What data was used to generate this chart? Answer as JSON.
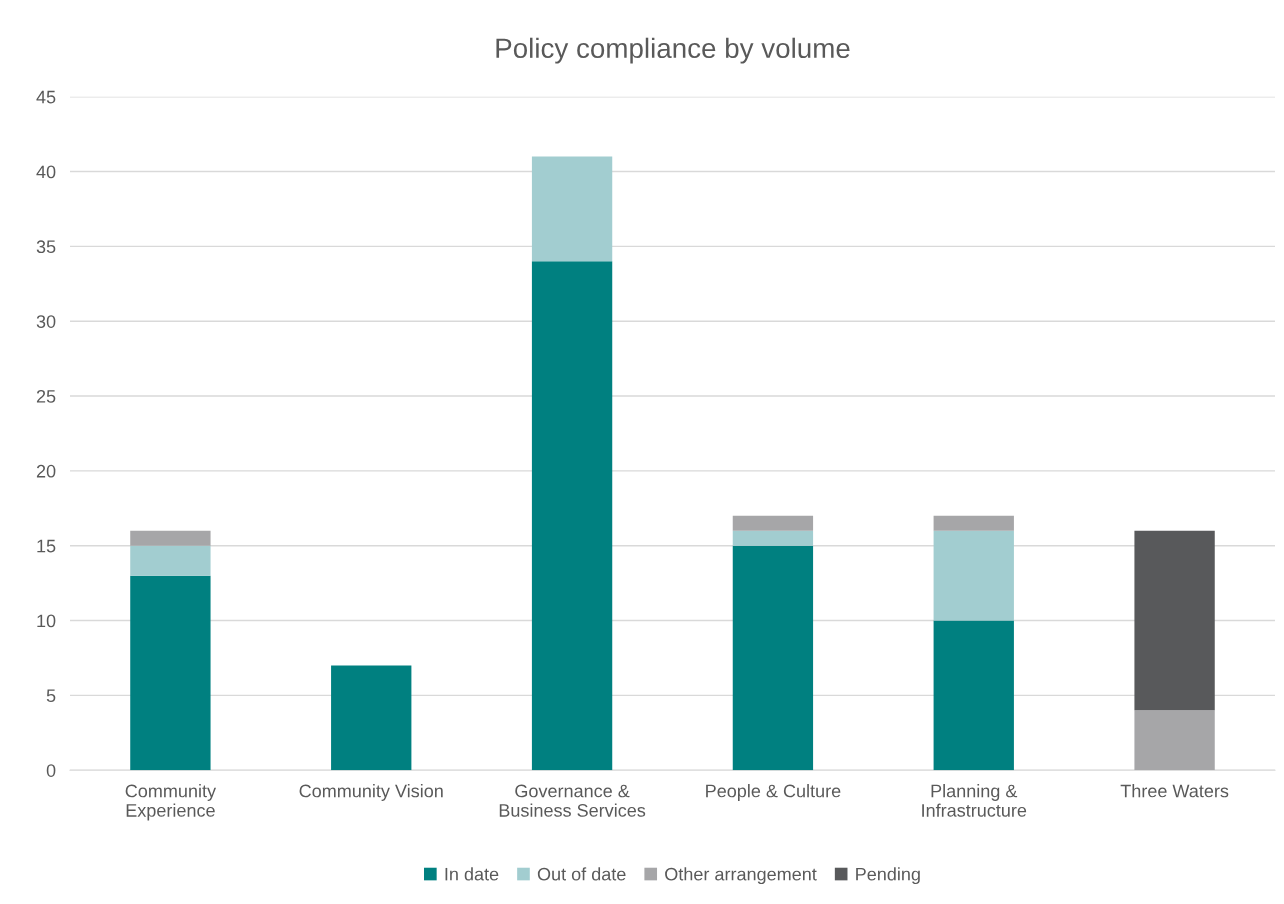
{
  "chart_data": {
    "type": "bar",
    "title": "Policy compliance by volume",
    "categories": [
      "Community\nExperience",
      "Community Vision",
      "Governance &\nBusiness Services",
      "People & Culture",
      "Planning &\nInfrastructure",
      "Three Waters"
    ],
    "stacked": true,
    "series": [
      {
        "name": "In date",
        "color": "#008080",
        "values": [
          13,
          7,
          34,
          15,
          10,
          0
        ]
      },
      {
        "name": "Out of date",
        "color": "#a2cdd0",
        "values": [
          2,
          0,
          7,
          1,
          6,
          0
        ]
      },
      {
        "name": "Other arrangement",
        "color": "#a6a6a8",
        "values": [
          1,
          0,
          0,
          1,
          1,
          4
        ]
      },
      {
        "name": "Pending",
        "color": "#58595b",
        "values": [
          0,
          0,
          0,
          0,
          0,
          12
        ]
      }
    ],
    "ylim": [
      0,
      45
    ],
    "yticks": [
      0,
      5,
      10,
      15,
      20,
      25,
      30,
      35,
      40,
      45
    ],
    "grid": "y",
    "legend": "bottom"
  }
}
